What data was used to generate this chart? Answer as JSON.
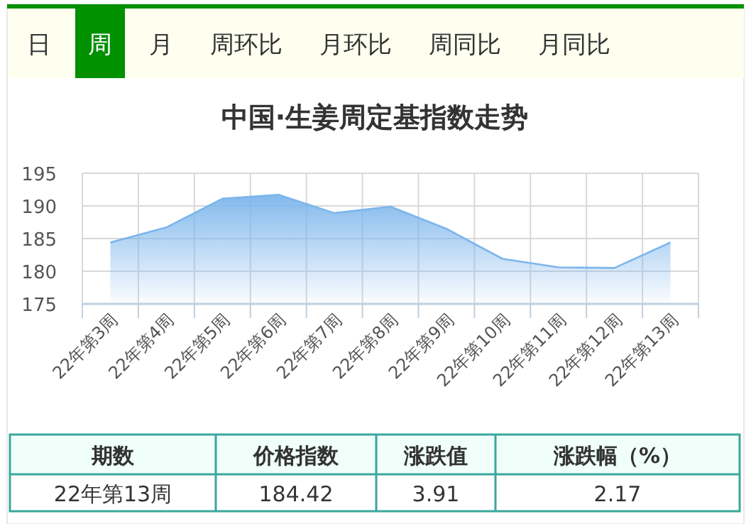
{
  "chart_data": [
    {
      "type": "other",
      "categories": [
        "日",
        "周",
        "月",
        "周环比",
        "月环比",
        "周同比",
        "月同比"
      ],
      "colors": [
        "#fffff0",
        "#009000",
        "#fffff0",
        "#fffff0",
        "#fffff0",
        "#fffff0",
        "#fffff0"
      ]
    },
    {
      "type": "area",
      "title": "中国·生姜周定基指数走势",
      "categories": [
        "22年第3周",
        "22年第4周",
        "22年第5周",
        "22年第6周",
        "22年第7周",
        "22年第8周",
        "22年第9周",
        "22年第10周",
        "22年第11周",
        "22年第12周",
        "22年第13周"
      ],
      "series": [
        {
          "color": "#7cb5ec",
          "values": [
            184.4,
            186.7,
            191.1,
            191.7,
            188.9,
            189.9,
            186.5,
            181.9,
            180.6,
            180.5,
            184.4
          ]
        }
      ],
      "ylim": [
        175,
        195
      ],
      "yticks": [
        175,
        180,
        185,
        190,
        195
      ],
      "grid": true
    },
    {
      "type": "other",
      "categories": [
        "期数",
        "价格指数",
        "涨跌值",
        "涨跌幅（%）"
      ],
      "annotations": [
        "22年第13周",
        "184.42",
        "3.91",
        "2.17"
      ]
    }
  ]
}
